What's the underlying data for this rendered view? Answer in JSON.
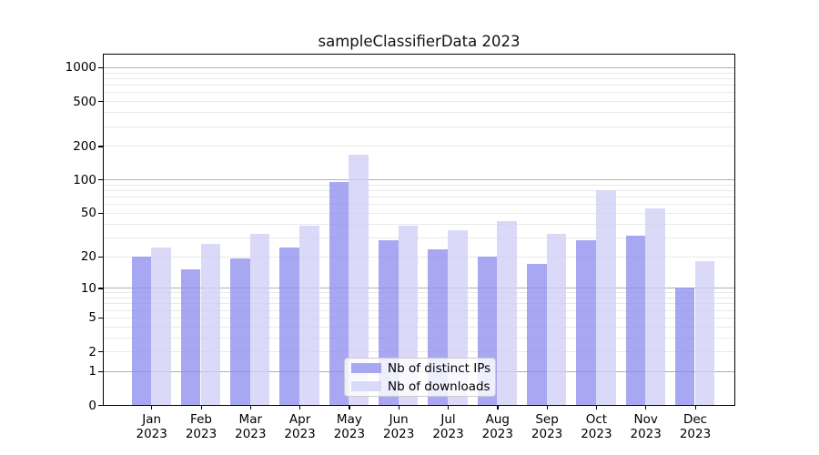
{
  "chart_data": {
    "type": "bar",
    "title": "sampleClassifierData 2023",
    "categories": [
      "Jan",
      "Feb",
      "Mar",
      "Apr",
      "May",
      "Jun",
      "Jul",
      "Aug",
      "Sep",
      "Oct",
      "Nov",
      "Dec"
    ],
    "year_label": "2023",
    "series": [
      {
        "name": "Nb of distinct IPs",
        "color": "#9090ee",
        "values": [
          20,
          15,
          19,
          24,
          94,
          28,
          23,
          20,
          17,
          28,
          31,
          10
        ]
      },
      {
        "name": "Nb of downloads",
        "color": "#cfcff6",
        "values": [
          24,
          26,
          32,
          38,
          167,
          38,
          35,
          42,
          32,
          80,
          55,
          18
        ]
      }
    ],
    "bar_alpha": 0.78,
    "y_axis": {
      "scale": "log1p",
      "tick_labels": [
        "0",
        "1",
        "2",
        "5",
        "10",
        "20",
        "50",
        "100",
        "200",
        "500",
        "1000"
      ],
      "tick_values": [
        0,
        1,
        2,
        5,
        10,
        20,
        50,
        100,
        200,
        500,
        1000
      ],
      "major_gridline_values": [
        1,
        10,
        100,
        1000
      ],
      "ylim": [
        0,
        1320
      ],
      "grid_major_color": "#b0b0b0",
      "grid_minor_color": "#e9e9e9"
    },
    "legend": {
      "position": "lower-center",
      "entries": [
        "Nb of distinct IPs",
        "Nb of downloads"
      ]
    }
  }
}
